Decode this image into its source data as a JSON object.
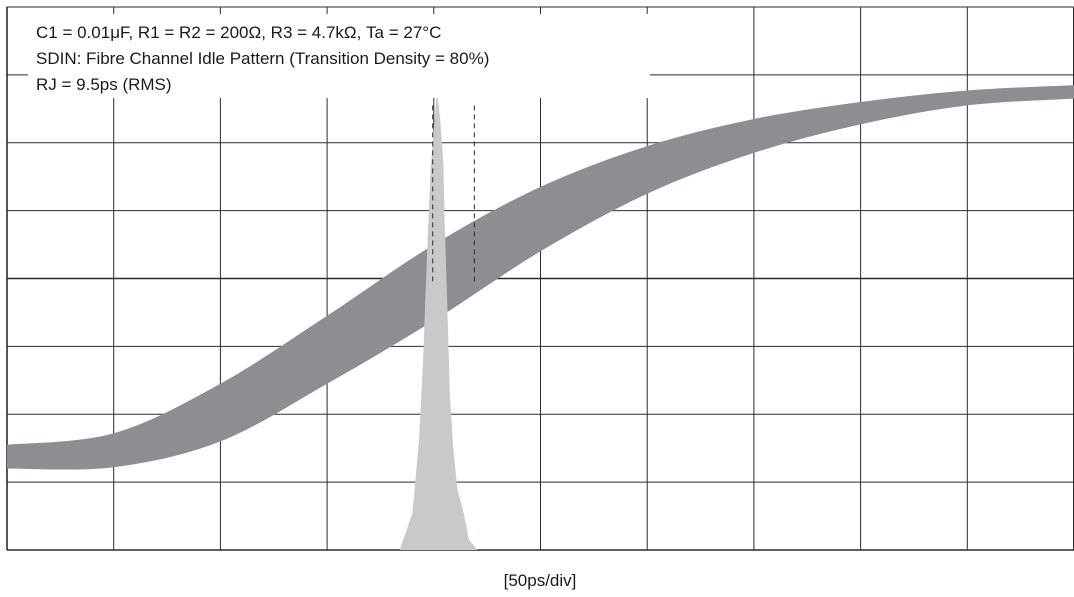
{
  "chart_data": {
    "type": "area",
    "title": "",
    "xlabel": "[50ps/div]",
    "ylabel": "",
    "x_unit": "ps",
    "x_per_div": 50,
    "x_divisions": 10,
    "y_divisions": 8,
    "grid": true,
    "annotations": [
      "C1 = 0.01μF, R1 = R2 = 200Ω, R3 = 4.7kΩ, Ta = 27°C",
      "SDIN: Fibre Channel Idle Pattern (Transition Density = 80%)",
      "RJ = 9.5ps (RMS)"
    ],
    "rj_rms_ps": 9.5,
    "waveform_band": {
      "x_div": [
        0,
        1,
        2,
        3,
        4,
        5,
        6,
        7,
        8,
        9,
        10
      ],
      "y_upper_div": [
        1.55,
        1.72,
        2.45,
        3.45,
        4.5,
        5.35,
        5.95,
        6.35,
        6.6,
        6.77,
        6.85
      ],
      "y_lower_div": [
        1.2,
        1.22,
        1.6,
        2.45,
        3.38,
        4.4,
        5.25,
        5.85,
        6.27,
        6.55,
        6.65
      ]
    },
    "jitter_histogram": {
      "x_div": [
        3.68,
        3.8,
        3.86,
        3.9,
        3.94,
        3.97,
        4.0,
        4.03,
        4.06,
        4.09,
        4.1,
        4.13,
        4.15,
        4.18,
        4.22,
        4.28,
        4.33,
        4.41
      ],
      "height_div": [
        0,
        0.55,
        1.6,
        2.8,
        4.5,
        5.6,
        6.2,
        6.75,
        6.35,
        5.7,
        4.9,
        3.4,
        2.3,
        1.55,
        0.9,
        0.55,
        0.15,
        0
      ],
      "markers_div": [
        3.99,
        4.38
      ]
    }
  }
}
